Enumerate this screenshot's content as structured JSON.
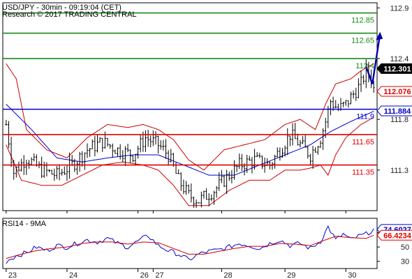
{
  "header": {
    "title": "USD/JPY - 30min - 09:19:04 (CET)",
    "source": "Research © 2017 TRADING CENTRAL"
  },
  "colors": {
    "green": "#1a8a1a",
    "red": "#e00000",
    "blue": "#0000cc",
    "arrow": "#0000aa",
    "bollinger": "#cc0000",
    "ma": "#0000cc",
    "price": "#000000",
    "frame": "#000000"
  },
  "chart_data": [
    {
      "type": "candlestick",
      "title": "USD/JPY - 30min - 09:19:04 (CET)",
      "ylim": [
        110.9,
        112.95
      ],
      "y_ticks": [
        "112.9",
        "112.4",
        "111.8",
        "111.3"
      ],
      "y_tick_values": [
        112.9,
        112.4,
        111.8,
        111.3
      ],
      "x_ticks": [
        "23",
        "24",
        "26",
        "27",
        "28",
        "29",
        "30"
      ],
      "x_tick_bars": [
        0,
        24,
        52,
        58,
        85,
        110,
        134
      ],
      "bar_count": 146,
      "levels": [
        {
          "label": "112.85",
          "value": 112.85,
          "color": "green"
        },
        {
          "label": "112.65",
          "value": 112.65,
          "color": "green"
        },
        {
          "label": "112.4",
          "value": 112.4,
          "color": "green"
        },
        {
          "label": "111.9",
          "value": 111.9,
          "color": "blue"
        },
        {
          "label": "111.65",
          "value": 111.65,
          "color": "red"
        },
        {
          "label": "111.35",
          "value": 111.35,
          "color": "red"
        }
      ],
      "badges": [
        {
          "label": "112.301",
          "value": 112.301,
          "style": "dark"
        },
        {
          "label": "112.076",
          "value": 112.076,
          "style": "red"
        },
        {
          "label": "111.884",
          "value": 111.884,
          "style": "blue"
        }
      ],
      "price_anchors": [
        [
          0,
          111.75
        ],
        [
          3,
          111.28
        ],
        [
          8,
          111.42
        ],
        [
          14,
          111.3
        ],
        [
          20,
          111.25
        ],
        [
          26,
          111.35
        ],
        [
          32,
          111.5
        ],
        [
          38,
          111.58
        ],
        [
          44,
          111.5
        ],
        [
          50,
          111.45
        ],
        [
          55,
          111.62
        ],
        [
          60,
          111.55
        ],
        [
          64,
          111.45
        ],
        [
          68,
          111.2
        ],
        [
          72,
          111.05
        ],
        [
          76,
          111.0
        ],
        [
          82,
          111.1
        ],
        [
          86,
          111.2
        ],
        [
          92,
          111.35
        ],
        [
          98,
          111.4
        ],
        [
          104,
          111.35
        ],
        [
          108,
          111.5
        ],
        [
          112,
          111.65
        ],
        [
          116,
          111.55
        ],
        [
          120,
          111.45
        ],
        [
          124,
          111.62
        ],
        [
          126,
          111.78
        ],
        [
          128,
          111.98
        ],
        [
          131,
          111.9
        ],
        [
          134,
          111.95
        ],
        [
          137,
          112.05
        ],
        [
          140,
          112.15
        ],
        [
          142,
          112.28
        ],
        [
          144,
          112.2
        ],
        [
          145,
          112.1
        ]
      ],
      "ma_anchors": [
        [
          0,
          111.95
        ],
        [
          10,
          111.7
        ],
        [
          20,
          111.42
        ],
        [
          30,
          111.38
        ],
        [
          40,
          111.42
        ],
        [
          50,
          111.45
        ],
        [
          60,
          111.45
        ],
        [
          70,
          111.35
        ],
        [
          80,
          111.25
        ],
        [
          90,
          111.25
        ],
        [
          100,
          111.35
        ],
        [
          110,
          111.45
        ],
        [
          120,
          111.55
        ],
        [
          128,
          111.68
        ],
        [
          136,
          111.78
        ],
        [
          145,
          111.88
        ]
      ],
      "bb_upper_anchors": [
        [
          0,
          112.35
        ],
        [
          4,
          112.2
        ],
        [
          8,
          111.7
        ],
        [
          16,
          111.5
        ],
        [
          24,
          111.42
        ],
        [
          32,
          111.62
        ],
        [
          40,
          111.75
        ],
        [
          48,
          111.72
        ],
        [
          54,
          111.75
        ],
        [
          60,
          111.7
        ],
        [
          66,
          111.6
        ],
        [
          72,
          111.4
        ],
        [
          78,
          111.3
        ],
        [
          86,
          111.5
        ],
        [
          94,
          111.55
        ],
        [
          102,
          111.6
        ],
        [
          110,
          111.75
        ],
        [
          116,
          111.8
        ],
        [
          122,
          111.7
        ],
        [
          126,
          111.95
        ],
        [
          130,
          112.15
        ],
        [
          136,
          112.2
        ],
        [
          140,
          112.28
        ],
        [
          145,
          112.35
        ]
      ],
      "bb_lower_anchors": [
        [
          0,
          111.55
        ],
        [
          6,
          111.2
        ],
        [
          14,
          111.15
        ],
        [
          22,
          111.15
        ],
        [
          30,
          111.25
        ],
        [
          38,
          111.35
        ],
        [
          46,
          111.38
        ],
        [
          54,
          111.35
        ],
        [
          60,
          111.3
        ],
        [
          66,
          111.15
        ],
        [
          72,
          110.95
        ],
        [
          80,
          110.95
        ],
        [
          88,
          111.1
        ],
        [
          96,
          111.2
        ],
        [
          104,
          111.2
        ],
        [
          110,
          111.3
        ],
        [
          116,
          111.3
        ],
        [
          120,
          111.32
        ],
        [
          124,
          111.35
        ],
        [
          127,
          111.25
        ],
        [
          130,
          111.45
        ],
        [
          134,
          111.62
        ],
        [
          140,
          111.75
        ],
        [
          145,
          111.82
        ]
      ],
      "projection": {
        "from_bar": 145,
        "from_value": 112.15,
        "to_value": 112.65
      }
    },
    {
      "type": "line",
      "title": "RSI14 - 9MA",
      "ylim": [
        20,
        90
      ],
      "y_ticks": [
        "70",
        "50",
        "30"
      ],
      "y_tick_values": [
        70,
        50,
        30
      ],
      "badges": [
        {
          "label": "74.6027",
          "value": 74.6027,
          "style": "blue"
        },
        {
          "label": "66.4234",
          "value": 66.4234,
          "style": "red"
        }
      ],
      "series": [
        {
          "color": "ma",
          "anchors": [
            [
              0,
              30
            ],
            [
              4,
              38
            ],
            [
              8,
              42
            ],
            [
              12,
              50
            ],
            [
              16,
              45
            ],
            [
              20,
              52
            ],
            [
              24,
              50
            ],
            [
              28,
              55
            ],
            [
              32,
              60
            ],
            [
              36,
              57
            ],
            [
              40,
              62
            ],
            [
              44,
              55
            ],
            [
              48,
              50
            ],
            [
              52,
              58
            ],
            [
              56,
              66
            ],
            [
              60,
              52
            ],
            [
              64,
              45
            ],
            [
              68,
              40
            ],
            [
              72,
              32
            ],
            [
              76,
              40
            ],
            [
              80,
              44
            ],
            [
              84,
              46
            ],
            [
              88,
              50
            ],
            [
              92,
              55
            ],
            [
              96,
              52
            ],
            [
              100,
              48
            ],
            [
              104,
              55
            ],
            [
              108,
              60
            ],
            [
              112,
              52
            ],
            [
              116,
              55
            ],
            [
              120,
              48
            ],
            [
              124,
              58
            ],
            [
              127,
              78
            ],
            [
              130,
              60
            ],
            [
              133,
              68
            ],
            [
              136,
              60
            ],
            [
              139,
              65
            ],
            [
              142,
              68
            ],
            [
              145,
              74.6
            ]
          ]
        },
        {
          "color": "bollinger",
          "anchors": [
            [
              0,
              34
            ],
            [
              6,
              40
            ],
            [
              12,
              45
            ],
            [
              18,
              48
            ],
            [
              24,
              50
            ],
            [
              30,
              55
            ],
            [
              36,
              57
            ],
            [
              42,
              57
            ],
            [
              48,
              54
            ],
            [
              54,
              57
            ],
            [
              60,
              56
            ],
            [
              66,
              48
            ],
            [
              72,
              40
            ],
            [
              78,
              40
            ],
            [
              84,
              44
            ],
            [
              90,
              48
            ],
            [
              96,
              51
            ],
            [
              102,
              51
            ],
            [
              108,
              55
            ],
            [
              114,
              54
            ],
            [
              120,
              52
            ],
            [
              126,
              60
            ],
            [
              130,
              65
            ],
            [
              136,
              63
            ],
            [
              142,
              62
            ],
            [
              145,
              66.4
            ]
          ]
        }
      ]
    }
  ]
}
